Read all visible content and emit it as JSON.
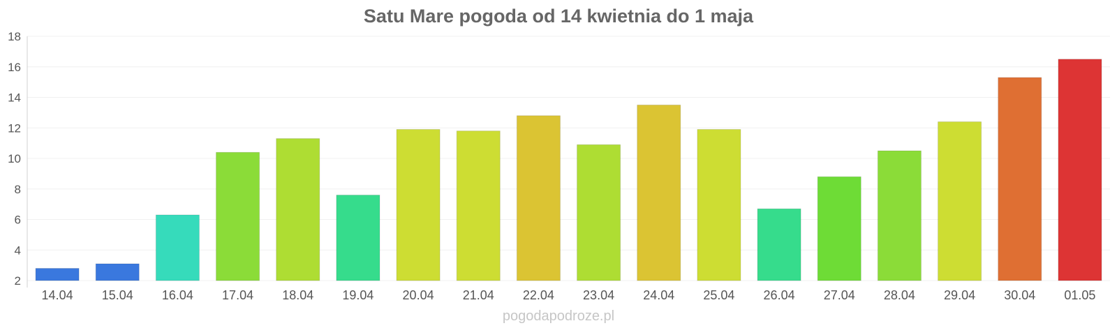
{
  "chart_data": {
    "type": "bar",
    "title": "Satu Mare pogoda od 14 kwietnia do 1 maja",
    "xlabel": "",
    "ylabel": "",
    "ylim": [
      2,
      18
    ],
    "yticks": [
      2,
      4,
      6,
      8,
      10,
      12,
      14,
      16,
      18
    ],
    "grid": true,
    "legend": "none",
    "categories": [
      "14.04",
      "15.04",
      "16.04",
      "17.04",
      "18.04",
      "19.04",
      "20.04",
      "21.04",
      "22.04",
      "23.04",
      "24.04",
      "25.04",
      "26.04",
      "27.04",
      "28.04",
      "29.04",
      "30.04",
      "01.05"
    ],
    "values": [
      2.8,
      3.1,
      6.3,
      10.4,
      11.3,
      7.6,
      11.9,
      11.8,
      12.8,
      10.9,
      13.5,
      11.9,
      6.7,
      8.8,
      10.5,
      12.4,
      15.3,
      16.5
    ],
    "colors": [
      "#3a78de",
      "#3a78de",
      "#36dbbb",
      "#8bdc38",
      "#aedd33",
      "#36dc8c",
      "#cddd33",
      "#cddd33",
      "#dbc433",
      "#aedd33",
      "#dbc433",
      "#cddd33",
      "#36dc8c",
      "#6edc36",
      "#8bdc38",
      "#cddd33",
      "#df6f33",
      "#dd3434"
    ]
  },
  "watermark": "pogodapodroze.pl"
}
